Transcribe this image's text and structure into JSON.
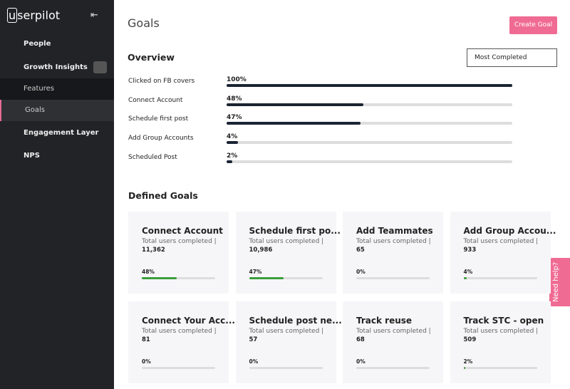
{
  "sidebar": {
    "logo": "userpilot",
    "items": [
      "People",
      "Growth Insights",
      "Features",
      "Goals",
      "Engagement Layer",
      "NPS"
    ]
  },
  "header": {
    "title": "Goals",
    "button": "Create Goal"
  },
  "overview": {
    "title": "Overview",
    "dropdown": "Most Completed",
    "rows": [
      {
        "name": "Clicked on FB covers",
        "value": 100,
        "label": "100%"
      },
      {
        "name": "Connect Account",
        "value": 48,
        "label": "48%"
      },
      {
        "name": "Schedule first post",
        "value": 47,
        "label": "47%"
      },
      {
        "name": "Add Group Accounts",
        "value": 4,
        "label": "4%"
      },
      {
        "name": "Scheduled Post",
        "value": 2,
        "label": "2%"
      }
    ]
  },
  "defined_goals": {
    "title": "Defined Goals",
    "cards": [
      {
        "title": "Connect Account",
        "subtitle": "Total users completed |",
        "count": "11,362",
        "value": 48,
        "label": "48%"
      },
      {
        "title": "Schedule first po...",
        "subtitle": "Total users completed |",
        "count": "10,986",
        "value": 47,
        "label": "47%"
      },
      {
        "title": "Add Teammates",
        "subtitle": "Total users completed |",
        "count": "65",
        "value": 0,
        "label": "0%"
      },
      {
        "title": "Add Group Accou...",
        "subtitle": "Total users completed |",
        "count": "933",
        "value": 4,
        "label": "4%"
      },
      {
        "title": "Connect Your Acc...",
        "subtitle": "Total users completed |",
        "count": "81",
        "value": 0,
        "label": "0%"
      },
      {
        "title": "Schedule post ne...",
        "subtitle": "Total users completed |",
        "count": "57",
        "value": 0,
        "label": "0%"
      },
      {
        "title": "Track reuse",
        "subtitle": "Total users completed |",
        "count": "68",
        "value": 0,
        "label": "0%"
      },
      {
        "title": "Track STC - open",
        "subtitle": "Total users completed |",
        "count": "509",
        "value": 2,
        "label": "2%"
      }
    ]
  },
  "help": "Need help?"
}
